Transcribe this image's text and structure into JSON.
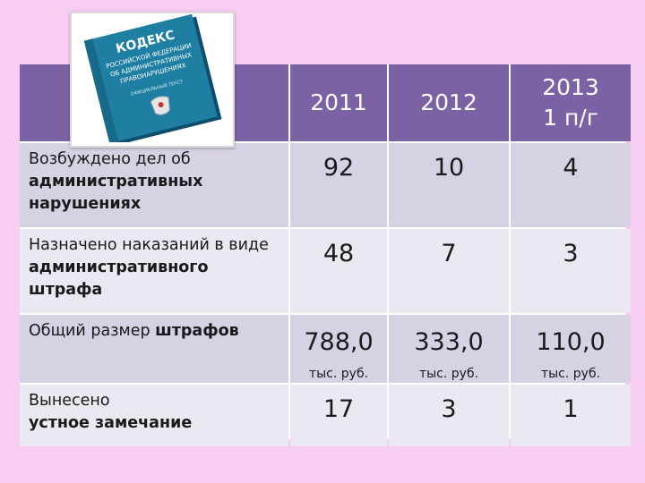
{
  "book": {
    "title": "КОДЕКС",
    "subtitle_lines": [
      "РОССИЙСКОЙ ФЕДЕРАЦИИ",
      "ОБ АДМИНИСТРАТИВНЫХ",
      "ПРАВОНАРУШЕНИЯХ"
    ],
    "edition": "ОФИЦИАЛЬНЫЙ ТЕКСТ"
  },
  "table": {
    "header": {
      "years": [
        "2011",
        "2012",
        "2013\n1 п/г"
      ]
    },
    "rows": [
      {
        "label_parts": [
          {
            "text": "Возбуждено дел об ",
            "bold": false
          },
          {
            "text": "административных нарушениях",
            "bold": true
          }
        ],
        "values": [
          "92",
          "10",
          "4"
        ]
      },
      {
        "label_parts": [
          {
            "text": "Назначено наказаний в виде ",
            "bold": false
          },
          {
            "text": "административного штрафа",
            "bold": true
          }
        ],
        "values": [
          "48",
          "7",
          "3"
        ]
      },
      {
        "label_parts": [
          {
            "text": "Общий размер ",
            "bold": false
          },
          {
            "text": "штрафов",
            "bold": true
          }
        ],
        "values": [
          "788,0",
          "333,0",
          "110,0"
        ],
        "unit": "тыс. руб."
      },
      {
        "label_parts": [
          {
            "text": "Вынесено ",
            "bold": false
          },
          {
            "text": "устное замечание",
            "bold": true
          }
        ],
        "values": [
          "17",
          "3",
          "1"
        ]
      }
    ]
  },
  "colors": {
    "background": "#f7cdf2",
    "header": "#7b62a4",
    "row_dark": "#d6d1e3",
    "row_light": "#ebe8f1",
    "book_cover": "#1f7fa3"
  }
}
